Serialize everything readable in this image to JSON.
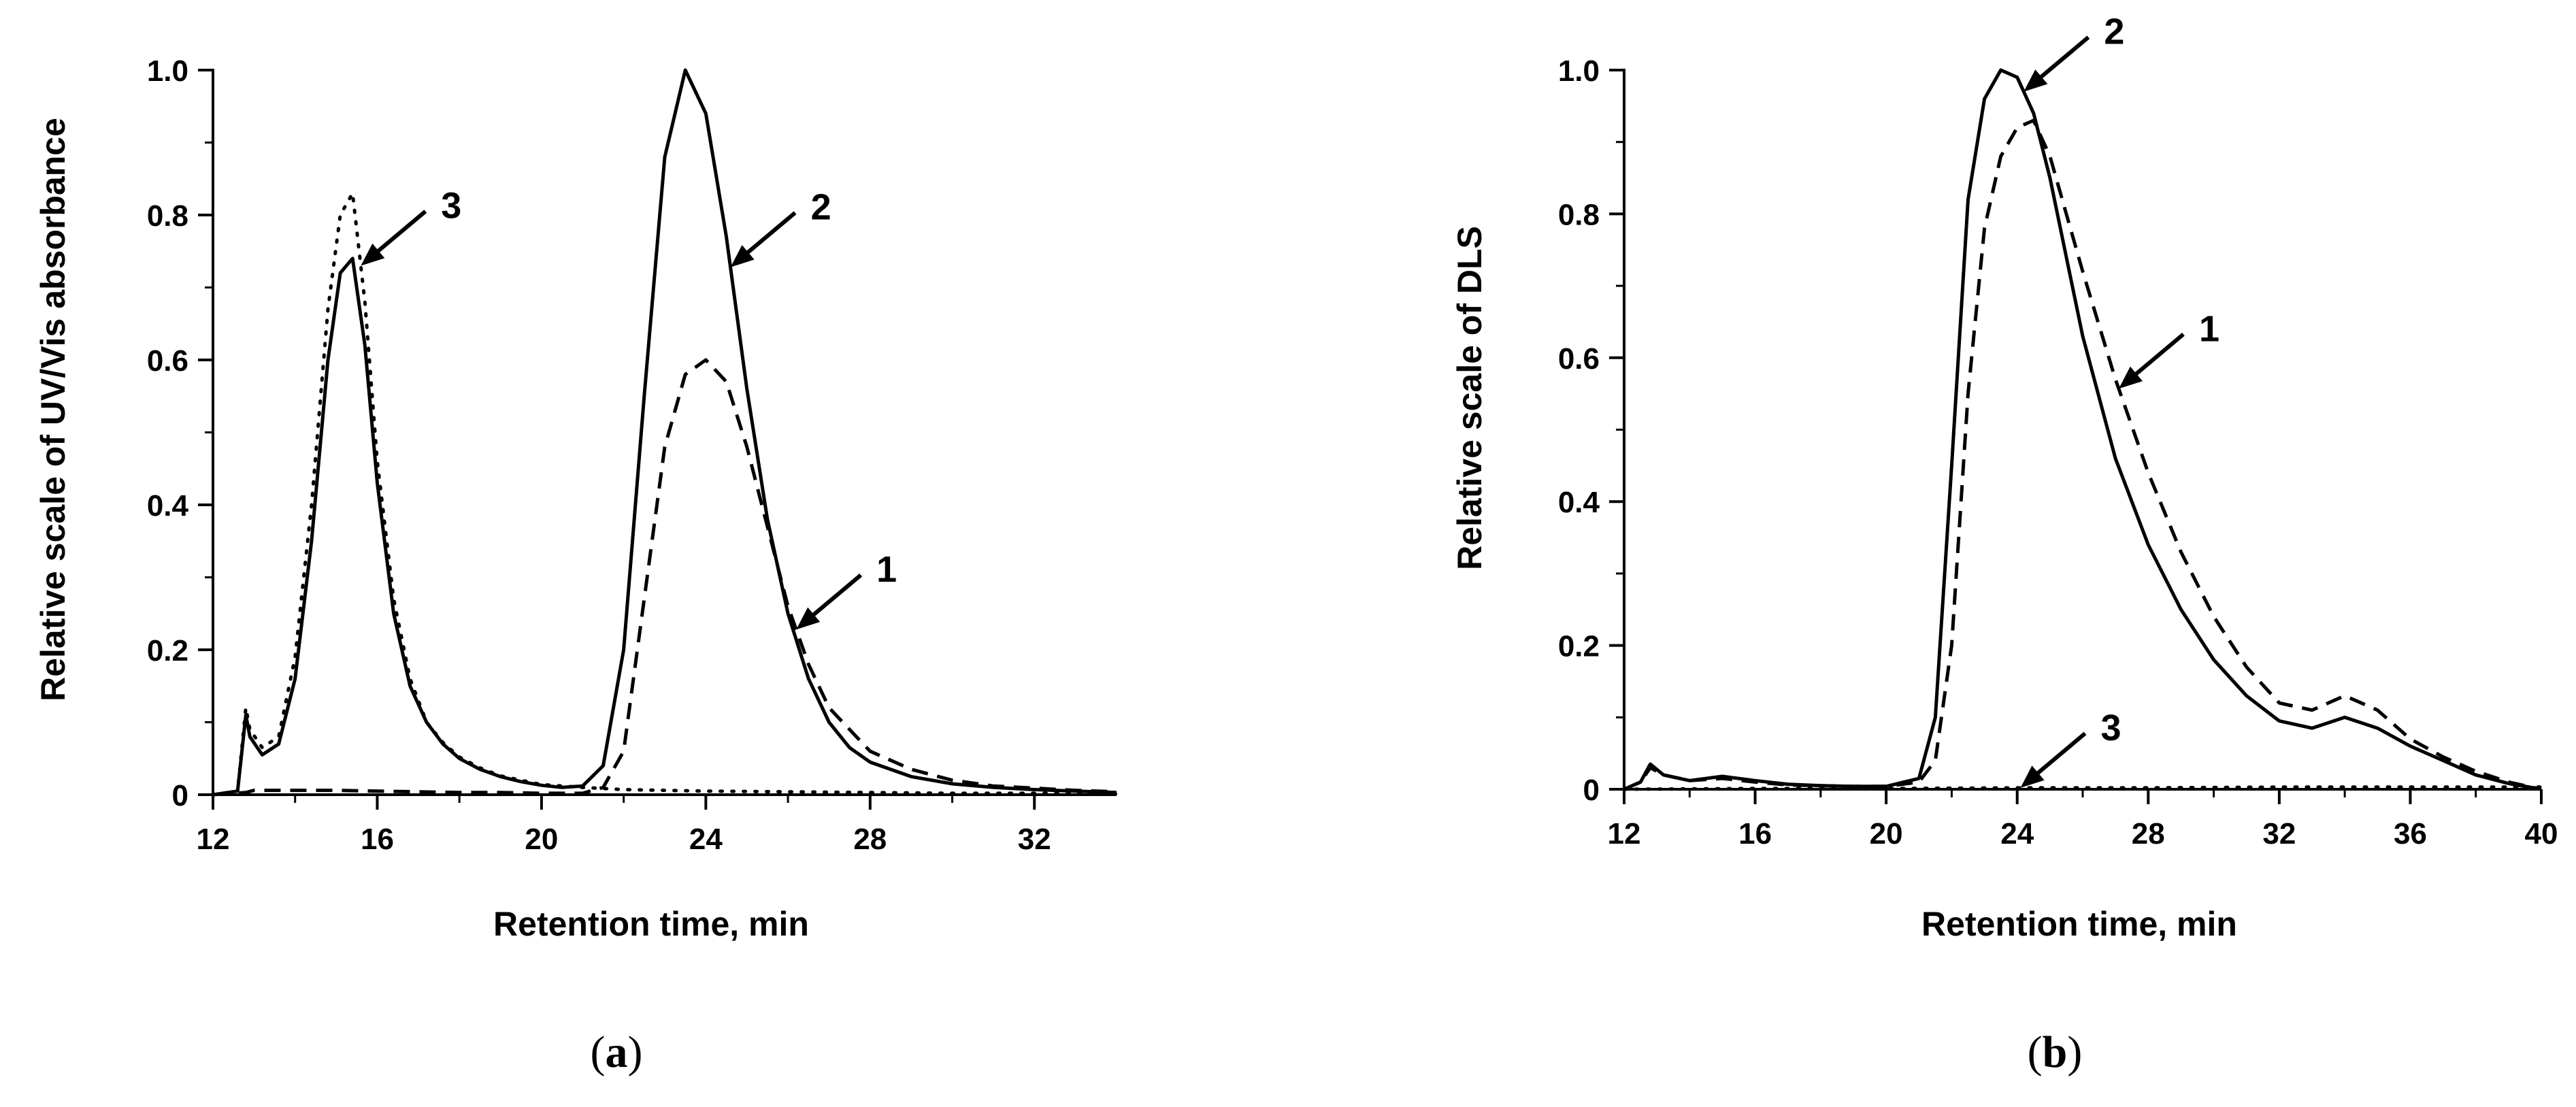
{
  "chart_data": [
    {
      "id": "a",
      "type": "line",
      "panel_label_letter": "a",
      "xlabel": "Retention time, min",
      "ylabel": "Relative scale of UV/Vis absorbance",
      "xlim": [
        12,
        34
      ],
      "ylim": [
        0,
        1.0
      ],
      "xticks": [
        12,
        16,
        20,
        24,
        28,
        32
      ],
      "xtick_labels": [
        "12",
        "16",
        "20",
        "24",
        "28",
        "32"
      ],
      "yticks": [
        0,
        0.2,
        0.4,
        0.6,
        0.8,
        1.0
      ],
      "ytick_labels": [
        "0",
        "0.2",
        "0.4",
        "0.6",
        "0.8",
        "1.0"
      ],
      "grid": false,
      "series": [
        {
          "name": "1",
          "style": "dashed",
          "x": [
            12,
            12.8,
            13,
            14,
            15,
            16,
            17,
            18,
            19,
            20,
            21,
            21.5,
            22,
            22.5,
            23,
            23.5,
            24,
            24.5,
            25,
            25.5,
            26,
            26.5,
            27,
            28,
            29,
            30,
            31,
            32,
            33,
            34
          ],
          "values": [
            0,
            0.003,
            0.006,
            0.006,
            0.006,
            0.005,
            0.004,
            0.003,
            0.003,
            0.002,
            0.002,
            0.01,
            0.06,
            0.27,
            0.48,
            0.58,
            0.6,
            0.57,
            0.48,
            0.37,
            0.26,
            0.18,
            0.12,
            0.06,
            0.035,
            0.02,
            0.012,
            0.009,
            0.006,
            0.004
          ]
        },
        {
          "name": "2",
          "style": "solid",
          "x": [
            12,
            12.6,
            12.8,
            12.9,
            13.2,
            13.6,
            14,
            14.4,
            14.8,
            15.1,
            15.4,
            15.7,
            16,
            16.4,
            16.8,
            17.2,
            17.6,
            18,
            18.5,
            19,
            19.5,
            20,
            20.5,
            21,
            21.5,
            22,
            22.5,
            23,
            23.5,
            24,
            24.5,
            25,
            25.5,
            26,
            26.5,
            27,
            27.5,
            28,
            29,
            30,
            31,
            32,
            33,
            34
          ],
          "values": [
            0,
            0.005,
            0.11,
            0.08,
            0.055,
            0.07,
            0.16,
            0.35,
            0.6,
            0.72,
            0.74,
            0.62,
            0.43,
            0.25,
            0.15,
            0.1,
            0.07,
            0.05,
            0.035,
            0.025,
            0.018,
            0.013,
            0.01,
            0.012,
            0.04,
            0.2,
            0.55,
            0.88,
            1.0,
            0.94,
            0.77,
            0.56,
            0.38,
            0.25,
            0.16,
            0.1,
            0.065,
            0.045,
            0.025,
            0.015,
            0.01,
            0.007,
            0.005,
            0.003
          ]
        },
        {
          "name": "3",
          "style": "dotted",
          "x": [
            12,
            12.6,
            12.8,
            12.9,
            13.2,
            13.6,
            14,
            14.4,
            14.8,
            15.1,
            15.4,
            15.7,
            16,
            16.4,
            16.8,
            17.2,
            17.6,
            18,
            18.5,
            19,
            19.5,
            20,
            21,
            22,
            24,
            26,
            28,
            30,
            32,
            34
          ],
          "values": [
            0,
            0.005,
            0.12,
            0.09,
            0.065,
            0.08,
            0.19,
            0.4,
            0.67,
            0.8,
            0.83,
            0.68,
            0.46,
            0.27,
            0.16,
            0.1,
            0.072,
            0.052,
            0.037,
            0.026,
            0.02,
            0.014,
            0.01,
            0.007,
            0.005,
            0.004,
            0.003,
            0.002,
            0.002,
            0.001
          ]
        }
      ],
      "annotations": [
        {
          "text": "1",
          "series": "1",
          "at_x": 26.2
        },
        {
          "text": "2",
          "series": "2",
          "at_x": 24.6
        },
        {
          "text": "3",
          "series": "3",
          "at_x": 15.6
        }
      ]
    },
    {
      "id": "b",
      "type": "line",
      "panel_label_letter": "b",
      "xlabel": "Retention time, min",
      "ylabel": "Relative scale of DLS",
      "xlim": [
        12,
        40
      ],
      "ylim": [
        0,
        1.0
      ],
      "xticks": [
        12,
        16,
        20,
        24,
        28,
        32,
        36,
        40
      ],
      "xtick_labels": [
        "12",
        "16",
        "20",
        "24",
        "28",
        "32",
        "36",
        "40"
      ],
      "yticks": [
        0,
        0.2,
        0.4,
        0.6,
        0.8,
        1.0
      ],
      "ytick_labels": [
        "0",
        "0.2",
        "0.4",
        "0.6",
        "0.8",
        "1.0"
      ],
      "grid": false,
      "series": [
        {
          "name": "1",
          "style": "dashed",
          "x": [
            12,
            12.5,
            12.8,
            13.2,
            14,
            15,
            16,
            17,
            18,
            19,
            20,
            21,
            21.5,
            22,
            22.5,
            23,
            23.5,
            24,
            24.5,
            25,
            25.5,
            26,
            27,
            28,
            29,
            30,
            31,
            32,
            33,
            34,
            35,
            36,
            37,
            38,
            39,
            40
          ],
          "values": [
            0,
            0.01,
            0.03,
            0.02,
            0.012,
            0.015,
            0.01,
            0.006,
            0.005,
            0.004,
            0.004,
            0.01,
            0.04,
            0.2,
            0.55,
            0.78,
            0.88,
            0.92,
            0.93,
            0.88,
            0.8,
            0.72,
            0.57,
            0.44,
            0.33,
            0.24,
            0.17,
            0.12,
            0.11,
            0.13,
            0.11,
            0.07,
            0.045,
            0.025,
            0.01,
            0
          ]
        },
        {
          "name": "2",
          "style": "solid",
          "x": [
            12,
            12.5,
            12.8,
            13.2,
            14,
            15,
            16,
            17,
            18,
            19,
            20,
            21,
            21.5,
            22,
            22.5,
            23,
            23.5,
            24,
            24.5,
            25,
            25.5,
            26,
            27,
            28,
            29,
            30,
            31,
            32,
            33,
            34,
            35,
            36,
            37,
            38,
            39,
            40
          ],
          "values": [
            0,
            0.01,
            0.035,
            0.02,
            0.012,
            0.018,
            0.012,
            0.007,
            0.005,
            0.004,
            0.004,
            0.015,
            0.1,
            0.45,
            0.82,
            0.96,
            1.0,
            0.99,
            0.94,
            0.85,
            0.74,
            0.63,
            0.46,
            0.34,
            0.25,
            0.18,
            0.13,
            0.095,
            0.085,
            0.1,
            0.085,
            0.06,
            0.04,
            0.02,
            0.008,
            0
          ]
        },
        {
          "name": "3",
          "style": "dotted",
          "x": [
            12,
            16,
            20,
            24,
            28,
            32,
            36,
            40
          ],
          "values": [
            0,
            0.001,
            0.001,
            0.002,
            0.002,
            0.003,
            0.003,
            0.003
          ]
        }
      ],
      "annotations": [
        {
          "text": "1",
          "series": "1",
          "at_x": 27.1
        },
        {
          "text": "2",
          "series": "2",
          "at_x": 24.2
        },
        {
          "text": "3",
          "series": "3",
          "at_x": 24.1
        }
      ]
    }
  ]
}
